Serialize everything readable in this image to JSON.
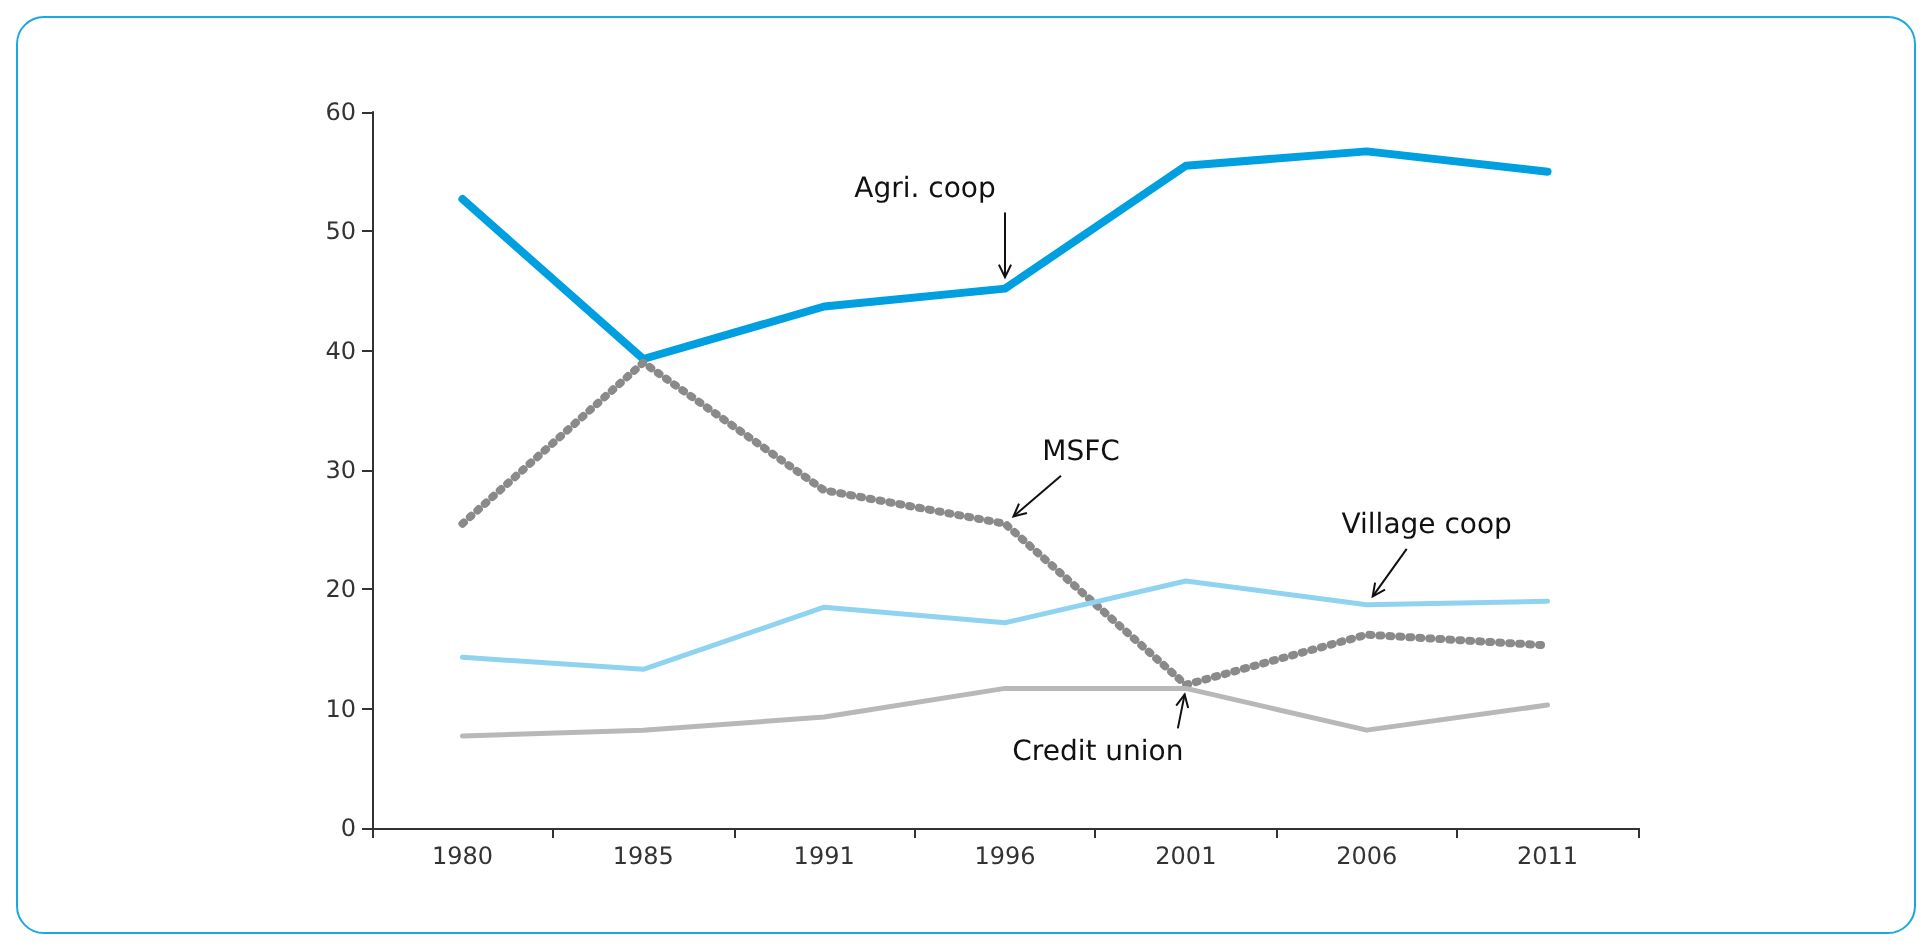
{
  "chart_data": {
    "type": "line",
    "categories": [
      "1980",
      "1985",
      "1991",
      "1996",
      "2001",
      "2006",
      "2011"
    ],
    "series": [
      {
        "name": "Agri. coop",
        "color": "#00a0e0",
        "line_style": "solid",
        "values": [
          52.7,
          39.3,
          43.7,
          45.2,
          55.5,
          56.7,
          55
        ]
      },
      {
        "name": "MSFC",
        "color": "#8a8a8a",
        "line_style": "dotted",
        "values": [
          25.5,
          39,
          28.3,
          25.5,
          12,
          16.2,
          15.3
        ]
      },
      {
        "name": "Village coop",
        "color": "#8fd3f0",
        "line_style": "solid",
        "values": [
          14.3,
          13.3,
          18.5,
          17.2,
          20.7,
          18.7,
          19
        ]
      },
      {
        "name": "Credit union",
        "color": "#b8b8b8",
        "line_style": "solid",
        "values": [
          7.7,
          8.2,
          9.3,
          11.7,
          11.7,
          8.2,
          10.3
        ]
      }
    ],
    "ylim": [
      0,
      60
    ],
    "yticks": [
      0,
      10,
      20,
      30,
      40,
      50,
      60
    ],
    "grid": false,
    "legend": false,
    "marker": "none"
  }
}
